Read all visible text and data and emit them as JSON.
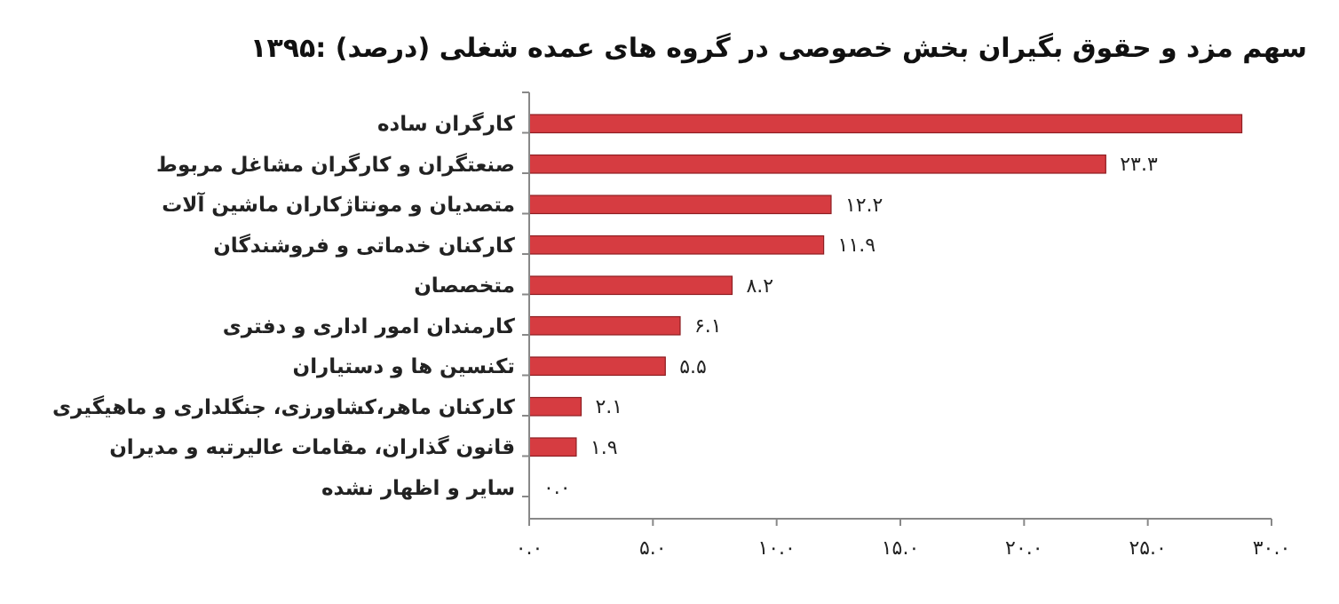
{
  "chart_data": {
    "type": "bar",
    "orientation": "horizontal",
    "title": "سهم مزد و حقوق بگیران بخش خصوصی در گروه های عمده شغلی (درصد) :۱۳۹۵",
    "categories": [
      "کارگران ساده",
      "صنعتگران و کارگران مشاغل مربوط",
      "متصدیان و مونتاژکاران ماشین آلات",
      "کارکنان خدماتی و فروشندگان",
      "متخصصان",
      "کارمندان امور اداری و دفتری",
      "تکنسین ها و دستیاران",
      "کارکنان ماهر،کشاورزی، جنگلداری و ماهیگیری",
      "قانون گذاران، مقامات عالیرتبه و مدیران",
      "سایر و اظهار نشده"
    ],
    "values": [
      28.8,
      23.3,
      12.2,
      11.9,
      8.2,
      6.1,
      5.5,
      2.1,
      1.9,
      0.0
    ],
    "value_labels": [
      null,
      "۲۳.۳",
      "۱۲.۲",
      "۱۱.۹",
      "۸.۲",
      "۶.۱",
      "۵.۵",
      "۲.۱",
      "۱.۹",
      "۰.۰"
    ],
    "color": "#d63c41",
    "xlim": [
      0,
      30
    ],
    "xticks": [
      {
        "value": 0,
        "label": "۰.۰"
      },
      {
        "value": 5,
        "label": "۵.۰"
      },
      {
        "value": 10,
        "label": "۱۰.۰"
      },
      {
        "value": 15,
        "label": "۱۵.۰"
      },
      {
        "value": 20,
        "label": "۲۰.۰"
      },
      {
        "value": 25,
        "label": "۲۵.۰"
      },
      {
        "value": 30,
        "label": "۳۰.۰"
      }
    ],
    "grid": false
  }
}
